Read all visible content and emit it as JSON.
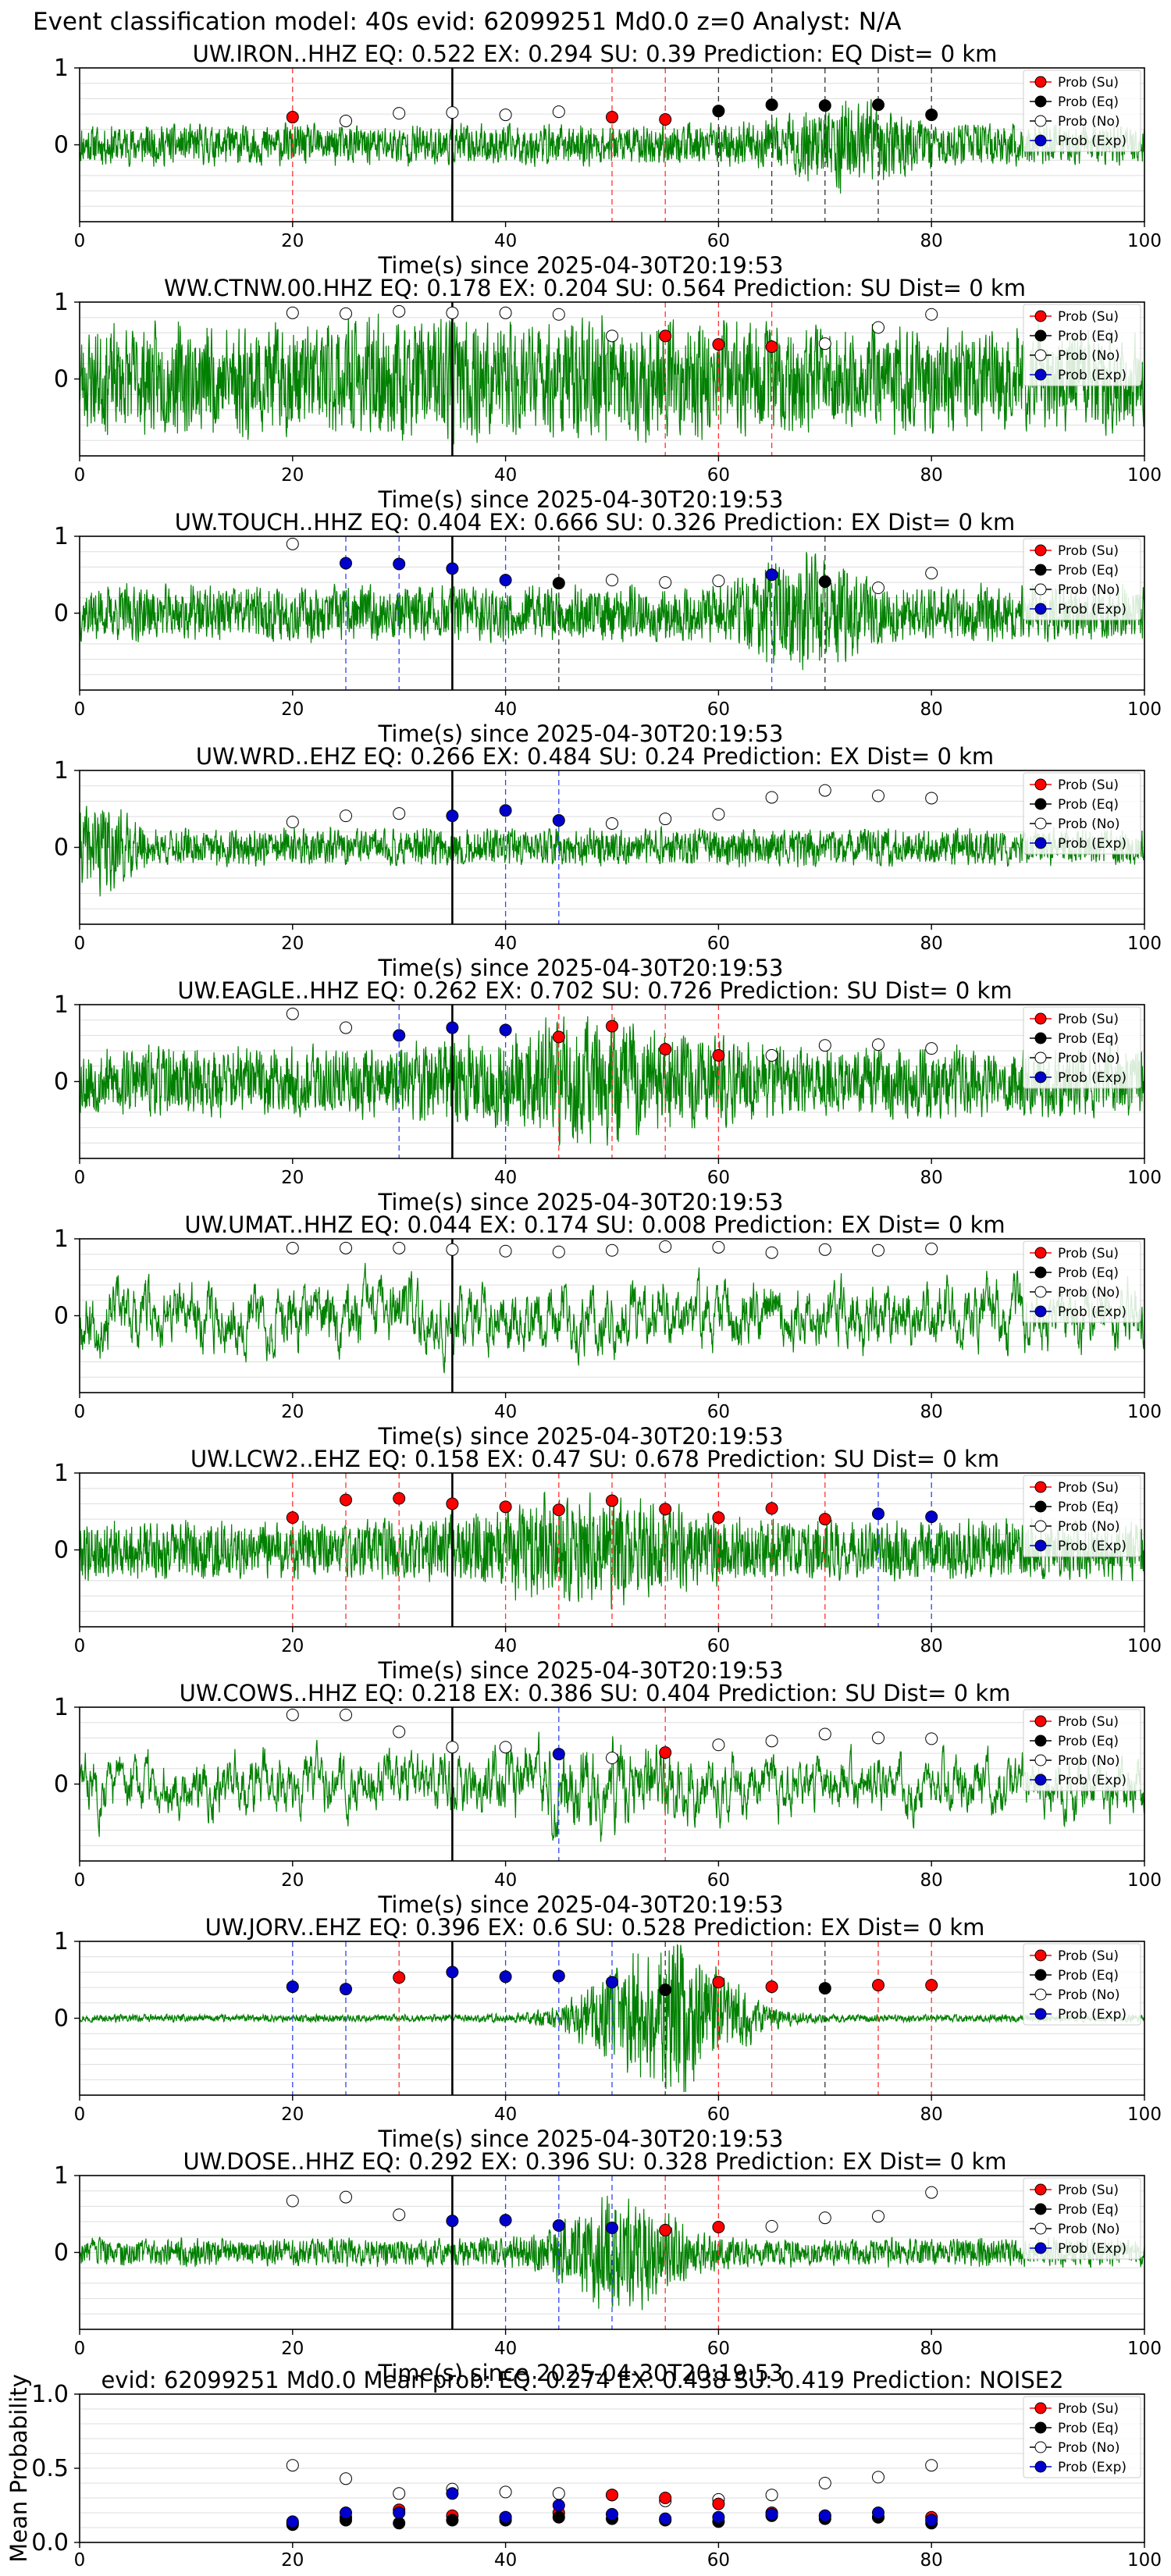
{
  "figure": {
    "suptitle": "Event classification model: 40s evid: 62099251 Md0.0 z=0 Analyst: N/A",
    "xlabel": "Time(s) since 2025-04-30T20:19:53",
    "legend_labels": [
      "Prob (Su)",
      "Prob (Eq)",
      "Prob (No)",
      "Prob (Exp)"
    ],
    "colors": {
      "su": "#ff0000",
      "eq": "#000000",
      "no": "#ffffff",
      "exp": "#0000cd",
      "waveform": "#008000",
      "grid": "#dddddd"
    }
  },
  "chart_data": [
    {
      "type": "line",
      "title": "UW.IRON..HHZ   EQ: 0.522  EX: 0.294  SU: 0.39   Prediction: EQ    Dist= 0 km",
      "xlim": [
        0,
        100
      ],
      "ylim": [
        -1,
        1
      ],
      "xticks": [
        0,
        20,
        40,
        60,
        80,
        100
      ],
      "yticks": [
        1,
        0
      ],
      "pick_line_x": 35,
      "amp": 0.22,
      "burst": {
        "center": 72,
        "width": 6,
        "gain": 2.2
      },
      "seed": 11,
      "points": [
        {
          "x": 20,
          "class": "su",
          "y": 0.36
        },
        {
          "x": 25,
          "class": "no",
          "y": 0.31
        },
        {
          "x": 30,
          "class": "no",
          "y": 0.41
        },
        {
          "x": 35,
          "class": "no",
          "y": 0.42
        },
        {
          "x": 40,
          "class": "no",
          "y": 0.39
        },
        {
          "x": 45,
          "class": "no",
          "y": 0.43
        },
        {
          "x": 50,
          "class": "su",
          "y": 0.36
        },
        {
          "x": 55,
          "class": "su",
          "y": 0.33
        },
        {
          "x": 60,
          "class": "eq",
          "y": 0.44
        },
        {
          "x": 65,
          "class": "eq",
          "y": 0.52
        },
        {
          "x": 70,
          "class": "eq",
          "y": 0.51
        },
        {
          "x": 75,
          "class": "eq",
          "y": 0.52
        },
        {
          "x": 80,
          "class": "eq",
          "y": 0.39
        }
      ]
    },
    {
      "type": "line",
      "title": "WW.CTNW.00.HHZ   EQ: 0.178  EX: 0.204  SU: 0.564   Prediction: SU    Dist= 0 km",
      "xlim": [
        0,
        100
      ],
      "ylim": [
        -1,
        1
      ],
      "xticks": [
        0,
        20,
        40,
        60,
        80,
        100
      ],
      "yticks": [
        1,
        0
      ],
      "pick_line_x": 35,
      "amp": 0.55,
      "burst": {
        "center": 40,
        "width": 30,
        "gain": 1.2
      },
      "seed": 23,
      "points": [
        {
          "x": 20,
          "class": "no",
          "y": 0.86
        },
        {
          "x": 25,
          "class": "no",
          "y": 0.85
        },
        {
          "x": 30,
          "class": "no",
          "y": 0.88
        },
        {
          "x": 35,
          "class": "no",
          "y": 0.86
        },
        {
          "x": 40,
          "class": "no",
          "y": 0.86
        },
        {
          "x": 45,
          "class": "no",
          "y": 0.84
        },
        {
          "x": 50,
          "class": "no",
          "y": 0.56
        },
        {
          "x": 55,
          "class": "su",
          "y": 0.56
        },
        {
          "x": 60,
          "class": "su",
          "y": 0.45
        },
        {
          "x": 65,
          "class": "su",
          "y": 0.42
        },
        {
          "x": 70,
          "class": "no",
          "y": 0.46
        },
        {
          "x": 75,
          "class": "no",
          "y": 0.67
        },
        {
          "x": 80,
          "class": "no",
          "y": 0.84
        }
      ]
    },
    {
      "type": "line",
      "title": "UW.TOUCH..HHZ   EQ: 0.404  EX: 0.666  SU: 0.326   Prediction: EX    Dist= 0 km",
      "xlim": [
        0,
        100
      ],
      "ylim": [
        -1,
        1
      ],
      "xticks": [
        0,
        20,
        40,
        60,
        80,
        100
      ],
      "yticks": [
        1,
        0
      ],
      "pick_line_x": 35,
      "amp": 0.3,
      "burst": {
        "center": 68,
        "width": 5,
        "gain": 2.4
      },
      "seed": 37,
      "points": [
        {
          "x": 20,
          "class": "no",
          "y": 0.9
        },
        {
          "x": 25,
          "class": "exp",
          "y": 0.65
        },
        {
          "x": 30,
          "class": "exp",
          "y": 0.64
        },
        {
          "x": 35,
          "class": "exp",
          "y": 0.58
        },
        {
          "x": 40,
          "class": "exp",
          "y": 0.43
        },
        {
          "x": 45,
          "class": "eq",
          "y": 0.39
        },
        {
          "x": 50,
          "class": "no",
          "y": 0.43
        },
        {
          "x": 55,
          "class": "no",
          "y": 0.4
        },
        {
          "x": 60,
          "class": "no",
          "y": 0.42
        },
        {
          "x": 65,
          "class": "exp",
          "y": 0.5
        },
        {
          "x": 70,
          "class": "eq",
          "y": 0.41
        },
        {
          "x": 75,
          "class": "no",
          "y": 0.33
        },
        {
          "x": 80,
          "class": "no",
          "y": 0.52
        }
      ]
    },
    {
      "type": "line",
      "title": "UW.WRD..EHZ   EQ: 0.266  EX: 0.484  SU: 0.24   Prediction: EX    Dist= 0 km",
      "xlim": [
        0,
        100
      ],
      "ylim": [
        -1,
        1
      ],
      "xticks": [
        0,
        20,
        40,
        60,
        80,
        100
      ],
      "yticks": [
        1,
        0
      ],
      "pick_line_x": 35,
      "amp": 0.2,
      "burst": {
        "center": 2,
        "width": 3,
        "gain": 2.5
      },
      "seed": 41,
      "points": [
        {
          "x": 20,
          "class": "no",
          "y": 0.33
        },
        {
          "x": 25,
          "class": "no",
          "y": 0.41
        },
        {
          "x": 30,
          "class": "no",
          "y": 0.44
        },
        {
          "x": 35,
          "class": "exp",
          "y": 0.41
        },
        {
          "x": 40,
          "class": "exp",
          "y": 0.48
        },
        {
          "x": 45,
          "class": "exp",
          "y": 0.35
        },
        {
          "x": 50,
          "class": "no",
          "y": 0.31
        },
        {
          "x": 55,
          "class": "no",
          "y": 0.37
        },
        {
          "x": 60,
          "class": "no",
          "y": 0.43
        },
        {
          "x": 65,
          "class": "no",
          "y": 0.65
        },
        {
          "x": 70,
          "class": "no",
          "y": 0.74
        },
        {
          "x": 75,
          "class": "no",
          "y": 0.67
        },
        {
          "x": 80,
          "class": "no",
          "y": 0.64
        }
      ]
    },
    {
      "type": "line",
      "title": "UW.EAGLE..HHZ   EQ: 0.262  EX: 0.702  SU: 0.726   Prediction: SU    Dist= 0 km",
      "xlim": [
        0,
        100
      ],
      "ylim": [
        -1,
        1
      ],
      "xticks": [
        0,
        20,
        40,
        60,
        80,
        100
      ],
      "yticks": [
        1,
        0
      ],
      "pick_line_x": 35,
      "amp": 0.38,
      "burst": {
        "center": 47,
        "width": 12,
        "gain": 1.8
      },
      "seed": 53,
      "points": [
        {
          "x": 20,
          "class": "no",
          "y": 0.88
        },
        {
          "x": 25,
          "class": "no",
          "y": 0.7
        },
        {
          "x": 30,
          "class": "exp",
          "y": 0.6
        },
        {
          "x": 35,
          "class": "exp",
          "y": 0.7
        },
        {
          "x": 40,
          "class": "exp",
          "y": 0.67
        },
        {
          "x": 45,
          "class": "su",
          "y": 0.58
        },
        {
          "x": 50,
          "class": "su",
          "y": 0.72
        },
        {
          "x": 55,
          "class": "su",
          "y": 0.42
        },
        {
          "x": 60,
          "class": "su",
          "y": 0.34
        },
        {
          "x": 65,
          "class": "no",
          "y": 0.34
        },
        {
          "x": 70,
          "class": "no",
          "y": 0.47
        },
        {
          "x": 75,
          "class": "no",
          "y": 0.48
        },
        {
          "x": 80,
          "class": "no",
          "y": 0.43
        }
      ]
    },
    {
      "type": "line",
      "title": "UW.UMAT..HHZ   EQ: 0.044  EX: 0.174  SU: 0.008   Prediction: EX    Dist= 0 km",
      "xlim": [
        0,
        100
      ],
      "ylim": [
        -1,
        1
      ],
      "xticks": [
        0,
        20,
        40,
        60,
        80,
        100
      ],
      "yticks": [
        1,
        0
      ],
      "pick_line_x": 35,
      "amp": 0.45,
      "burst": {
        "center": 50,
        "width": 20,
        "gain": 1.0
      },
      "seed": 67,
      "smooth": true,
      "points": [
        {
          "x": 20,
          "class": "no",
          "y": 0.88
        },
        {
          "x": 25,
          "class": "no",
          "y": 0.88
        },
        {
          "x": 30,
          "class": "no",
          "y": 0.88
        },
        {
          "x": 35,
          "class": "no",
          "y": 0.86
        },
        {
          "x": 40,
          "class": "no",
          "y": 0.84
        },
        {
          "x": 45,
          "class": "no",
          "y": 0.83
        },
        {
          "x": 50,
          "class": "no",
          "y": 0.85
        },
        {
          "x": 55,
          "class": "no",
          "y": 0.9
        },
        {
          "x": 60,
          "class": "no",
          "y": 0.89
        },
        {
          "x": 65,
          "class": "no",
          "y": 0.82
        },
        {
          "x": 70,
          "class": "no",
          "y": 0.86
        },
        {
          "x": 75,
          "class": "no",
          "y": 0.85
        },
        {
          "x": 80,
          "class": "no",
          "y": 0.87
        }
      ]
    },
    {
      "type": "line",
      "title": "UW.LCW2..EHZ   EQ: 0.158  EX: 0.47  SU: 0.678   Prediction: SU    Dist= 0 km",
      "xlim": [
        0,
        100
      ],
      "ylim": [
        -1,
        1
      ],
      "xticks": [
        0,
        20,
        40,
        60,
        80,
        100
      ],
      "yticks": [
        1,
        0
      ],
      "pick_line_x": 35,
      "amp": 0.32,
      "burst": {
        "center": 48,
        "width": 10,
        "gain": 1.9
      },
      "seed": 79,
      "points": [
        {
          "x": 20,
          "class": "su",
          "y": 0.42
        },
        {
          "x": 25,
          "class": "su",
          "y": 0.65
        },
        {
          "x": 30,
          "class": "su",
          "y": 0.67
        },
        {
          "x": 35,
          "class": "su",
          "y": 0.6
        },
        {
          "x": 40,
          "class": "su",
          "y": 0.56
        },
        {
          "x": 45,
          "class": "su",
          "y": 0.52
        },
        {
          "x": 50,
          "class": "su",
          "y": 0.64
        },
        {
          "x": 55,
          "class": "su",
          "y": 0.53
        },
        {
          "x": 60,
          "class": "su",
          "y": 0.42
        },
        {
          "x": 65,
          "class": "su",
          "y": 0.54
        },
        {
          "x": 70,
          "class": "su",
          "y": 0.4
        },
        {
          "x": 75,
          "class": "exp",
          "y": 0.47
        },
        {
          "x": 80,
          "class": "exp",
          "y": 0.43
        }
      ]
    },
    {
      "type": "line",
      "title": "UW.COWS..HHZ   EQ: 0.218  EX: 0.386  SU: 0.404   Prediction: SU    Dist= 0 km",
      "xlim": [
        0,
        100
      ],
      "ylim": [
        -1,
        1
      ],
      "xticks": [
        0,
        20,
        40,
        60,
        80,
        100
      ],
      "yticks": [
        1,
        0
      ],
      "pick_line_x": 35,
      "amp": 0.4,
      "burst": {
        "center": 48,
        "width": 8,
        "gain": 1.6
      },
      "seed": 83,
      "smooth": true,
      "points": [
        {
          "x": 20,
          "class": "no",
          "y": 0.9
        },
        {
          "x": 25,
          "class": "no",
          "y": 0.9
        },
        {
          "x": 30,
          "class": "no",
          "y": 0.68
        },
        {
          "x": 35,
          "class": "no",
          "y": 0.48
        },
        {
          "x": 40,
          "class": "no",
          "y": 0.48
        },
        {
          "x": 45,
          "class": "exp",
          "y": 0.39
        },
        {
          "x": 50,
          "class": "no",
          "y": 0.34
        },
        {
          "x": 55,
          "class": "su",
          "y": 0.41
        },
        {
          "x": 60,
          "class": "no",
          "y": 0.51
        },
        {
          "x": 65,
          "class": "no",
          "y": 0.56
        },
        {
          "x": 70,
          "class": "no",
          "y": 0.65
        },
        {
          "x": 75,
          "class": "no",
          "y": 0.6
        },
        {
          "x": 80,
          "class": "no",
          "y": 0.59
        }
      ]
    },
    {
      "type": "line",
      "title": "UW.JORV..EHZ   EQ: 0.396  EX: 0.6  SU: 0.528   Prediction: EX    Dist= 0 km",
      "xlim": [
        0,
        100
      ],
      "ylim": [
        -1,
        1
      ],
      "xticks": [
        0,
        20,
        40,
        60,
        80,
        100
      ],
      "yticks": [
        1,
        0
      ],
      "pick_line_x": 35,
      "amp": 0.04,
      "burst": {
        "center": 55,
        "width": 7,
        "gain": 22
      },
      "seed": 97,
      "points": [
        {
          "x": 20,
          "class": "exp",
          "y": 0.41
        },
        {
          "x": 25,
          "class": "exp",
          "y": 0.38
        },
        {
          "x": 30,
          "class": "su",
          "y": 0.53
        },
        {
          "x": 35,
          "class": "exp",
          "y": 0.6
        },
        {
          "x": 40,
          "class": "exp",
          "y": 0.54
        },
        {
          "x": 45,
          "class": "exp",
          "y": 0.55
        },
        {
          "x": 50,
          "class": "exp",
          "y": 0.47
        },
        {
          "x": 55,
          "class": "eq",
          "y": 0.37
        },
        {
          "x": 60,
          "class": "su",
          "y": 0.47
        },
        {
          "x": 65,
          "class": "su",
          "y": 0.41
        },
        {
          "x": 70,
          "class": "eq",
          "y": 0.39
        },
        {
          "x": 75,
          "class": "su",
          "y": 0.43
        },
        {
          "x": 80,
          "class": "su",
          "y": 0.43
        }
      ]
    },
    {
      "type": "line",
      "title": "UW.DOSE..HHZ   EQ: 0.292  EX: 0.396  SU: 0.328   Prediction: EX    Dist= 0 km",
      "xlim": [
        0,
        100
      ],
      "ylim": [
        -1,
        1
      ],
      "xticks": [
        0,
        20,
        40,
        60,
        80,
        100
      ],
      "yticks": [
        1,
        0
      ],
      "pick_line_x": 35,
      "amp": 0.15,
      "burst": {
        "center": 51,
        "width": 6,
        "gain": 4.2
      },
      "seed": 103,
      "points": [
        {
          "x": 20,
          "class": "no",
          "y": 0.67
        },
        {
          "x": 25,
          "class": "no",
          "y": 0.72
        },
        {
          "x": 30,
          "class": "no",
          "y": 0.49
        },
        {
          "x": 35,
          "class": "exp",
          "y": 0.41
        },
        {
          "x": 40,
          "class": "exp",
          "y": 0.42
        },
        {
          "x": 45,
          "class": "exp",
          "y": 0.35
        },
        {
          "x": 50,
          "class": "exp",
          "y": 0.32
        },
        {
          "x": 55,
          "class": "su",
          "y": 0.29
        },
        {
          "x": 60,
          "class": "su",
          "y": 0.33
        },
        {
          "x": 65,
          "class": "no",
          "y": 0.34
        },
        {
          "x": 70,
          "class": "no",
          "y": 0.45
        },
        {
          "x": 75,
          "class": "no",
          "y": 0.47
        },
        {
          "x": 80,
          "class": "no",
          "y": 0.78
        }
      ]
    },
    {
      "type": "scatter",
      "title": "evid: 62099251  Md0.0   Mean prob:   EQ: 0.274  EX: 0.438  SU: 0.419   Prediction: NOISE2",
      "ylabel": "Mean Probability",
      "xlim": [
        0,
        100
      ],
      "ylim": [
        0,
        1
      ],
      "xticks": [
        0,
        20,
        40,
        60,
        80,
        100
      ],
      "yticks": [
        1.0,
        0.5,
        0.0
      ],
      "x": [
        20,
        25,
        30,
        35,
        40,
        45,
        50,
        55,
        60,
        65,
        70,
        75,
        80
      ],
      "series": [
        {
          "name": "Prob (Su)",
          "class": "su",
          "values": [
            0.13,
            0.17,
            0.22,
            0.18,
            0.17,
            0.2,
            0.32,
            0.3,
            0.26,
            0.2,
            0.18,
            0.17,
            0.17
          ]
        },
        {
          "name": "Prob (Eq)",
          "class": "eq",
          "values": [
            0.12,
            0.15,
            0.13,
            0.15,
            0.15,
            0.17,
            0.16,
            0.15,
            0.14,
            0.18,
            0.16,
            0.17,
            0.13
          ]
        },
        {
          "name": "Prob (No)",
          "class": "no",
          "values": [
            0.52,
            0.43,
            0.33,
            0.36,
            0.34,
            0.33,
            0.32,
            0.28,
            0.29,
            0.32,
            0.4,
            0.44,
            0.52
          ]
        },
        {
          "name": "Prob (Exp)",
          "class": "exp",
          "values": [
            0.14,
            0.2,
            0.2,
            0.33,
            0.17,
            0.25,
            0.19,
            0.16,
            0.17,
            0.19,
            0.18,
            0.2,
            0.15
          ]
        }
      ]
    }
  ]
}
